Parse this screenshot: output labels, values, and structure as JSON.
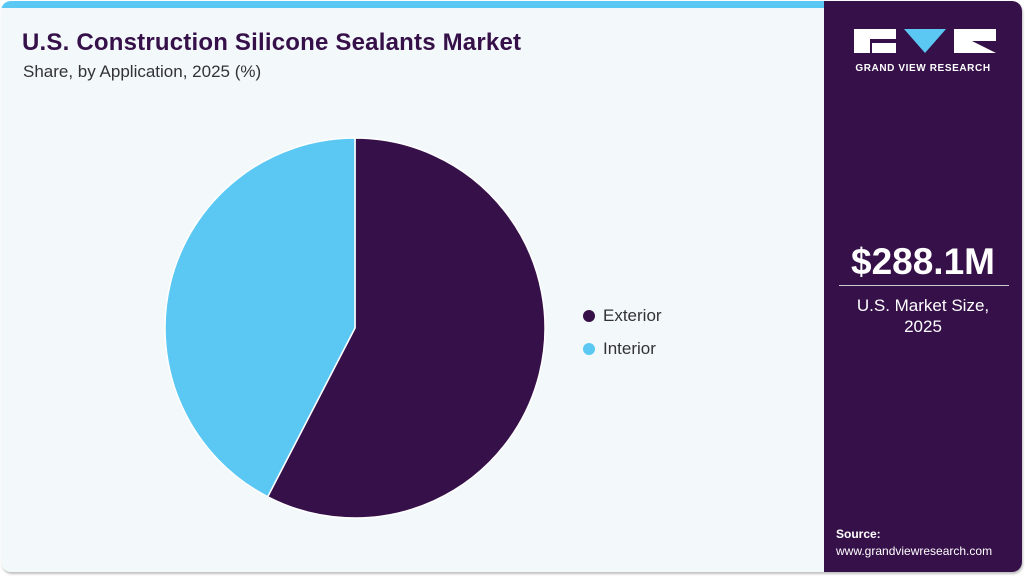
{
  "header": {
    "title": "U.S. Construction Silicone Sealants Market",
    "subtitle": "Share, by Application, 2025 (%)"
  },
  "colors": {
    "exterior": "#361049",
    "interior": "#5bc8f3",
    "accent_bar": "#5bc8f3",
    "sidebar_bg": "#361049",
    "background": "#f3f8fb"
  },
  "legend": {
    "items": [
      {
        "label": "Exterior",
        "color": "#361049"
      },
      {
        "label": "Interior",
        "color": "#5bc8f3"
      }
    ]
  },
  "sidebar": {
    "logo_text": "GRAND VIEW RESEARCH",
    "market_value": "$288.1M",
    "market_caption_line1": "U.S. Market Size,",
    "market_caption_line2": "2025",
    "source_label": "Source:",
    "source_url": "www.grandviewresearch.com"
  },
  "chart_data": {
    "type": "pie",
    "title": "U.S. Construction Silicone Sealants Market",
    "subtitle": "Share, by Application, 2025 (%)",
    "categories": [
      "Exterior",
      "Interior"
    ],
    "values": [
      57.6,
      42.4
    ],
    "colors": [
      "#361049",
      "#5bc8f3"
    ],
    "start_angle": "12 o'clock, clockwise",
    "legend_position": "right",
    "data_labels": false
  }
}
